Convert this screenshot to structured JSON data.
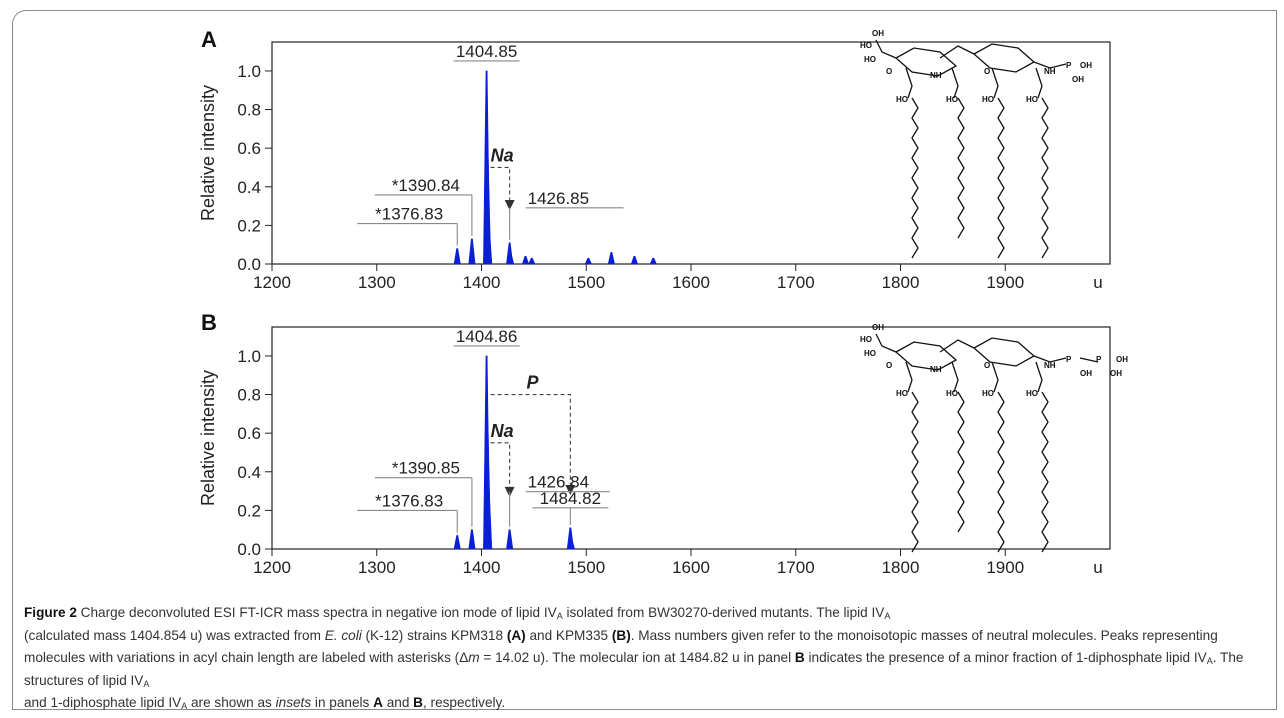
{
  "chart_data": [
    {
      "panel": "A",
      "type": "bar",
      "ylabel": "Relative intensity",
      "x_unit": "u",
      "xlim": [
        1200,
        2000
      ],
      "ylim": [
        0,
        1.15
      ],
      "x_ticks": [
        "1200",
        "1300",
        "1400",
        "1500",
        "1600",
        "1700",
        "1800",
        "1900"
      ],
      "y_ticks": [
        "0.0",
        "0.2",
        "0.4",
        "0.6",
        "0.8",
        "1.0"
      ],
      "peaks": [
        {
          "x": 1376.83,
          "y": 0.08
        },
        {
          "x": 1390.84,
          "y": 0.13
        },
        {
          "x": 1404.85,
          "y": 1.0
        },
        {
          "x": 1405.85,
          "y": 0.55
        },
        {
          "x": 1406.85,
          "y": 0.2
        },
        {
          "x": 1426.85,
          "y": 0.11
        },
        {
          "x": 1427.85,
          "y": 0.05
        },
        {
          "x": 1442,
          "y": 0.04
        },
        {
          "x": 1448,
          "y": 0.03
        },
        {
          "x": 1502,
          "y": 0.03
        },
        {
          "x": 1524,
          "y": 0.06
        },
        {
          "x": 1546,
          "y": 0.04
        },
        {
          "x": 1564,
          "y": 0.03
        }
      ],
      "labels": [
        {
          "text": "1404.85",
          "peak_x": 1404.85,
          "peak_y": 1.0
        },
        {
          "text": "*1390.84",
          "peak_x": 1390.84,
          "peak_y": 0.13
        },
        {
          "text": "*1376.83",
          "peak_x": 1376.83,
          "peak_y": 0.08
        },
        {
          "text": "1426.85",
          "peak_x": 1426.85,
          "peak_y": 0.11
        }
      ],
      "annotations": [
        {
          "text": "Na",
          "from_x": 1404.85,
          "to_x": 1426.85,
          "level": 0.5
        }
      ]
    },
    {
      "panel": "B",
      "type": "bar",
      "ylabel": "Relative intensity",
      "x_unit": "u",
      "xlim": [
        1200,
        2000
      ],
      "ylim": [
        0,
        1.15
      ],
      "x_ticks": [
        "1200",
        "1300",
        "1400",
        "1500",
        "1600",
        "1700",
        "1800",
        "1900"
      ],
      "y_ticks": [
        "0.0",
        "0.2",
        "0.4",
        "0.6",
        "0.8",
        "1.0"
      ],
      "peaks": [
        {
          "x": 1376.83,
          "y": 0.07
        },
        {
          "x": 1390.85,
          "y": 0.1
        },
        {
          "x": 1404.86,
          "y": 1.0
        },
        {
          "x": 1405.86,
          "y": 0.6
        },
        {
          "x": 1406.86,
          "y": 0.3
        },
        {
          "x": 1426.84,
          "y": 0.1
        },
        {
          "x": 1484.82,
          "y": 0.11
        },
        {
          "x": 1485.82,
          "y": 0.05
        }
      ],
      "labels": [
        {
          "text": "1404.86",
          "peak_x": 1404.86,
          "peak_y": 1.0
        },
        {
          "text": "*1390.85",
          "peak_x": 1390.85,
          "peak_y": 0.1
        },
        {
          "text": "*1376.83",
          "peak_x": 1376.83,
          "peak_y": 0.07
        },
        {
          "text": "1426.84",
          "peak_x": 1426.84,
          "peak_y": 0.1
        },
        {
          "text": "1484.82",
          "peak_x": 1484.82,
          "peak_y": 0.11
        }
      ],
      "annotations": [
        {
          "text": "Na",
          "from_x": 1404.86,
          "to_x": 1426.84,
          "level": 0.55
        },
        {
          "text": "P",
          "from_x": 1404.86,
          "to_x": 1484.82,
          "level": 0.8
        }
      ]
    }
  ],
  "structure_a": {
    "labels": [
      "HO",
      "HO",
      "O",
      "NH",
      "HO",
      "HO",
      "HO",
      "HO",
      "NH",
      "O",
      "P",
      "OH",
      "OH",
      "OH"
    ]
  },
  "structure_b": {
    "labels": [
      "HO",
      "HO",
      "O",
      "NH",
      "HO",
      "HO",
      "HO",
      "HO",
      "NH",
      "O",
      "P",
      "P",
      "OH",
      "OH",
      "OH",
      "OH"
    ]
  },
  "caption": {
    "figure_label": "Figure 2",
    "lines": [
      "Charge deconvoluted ESI FT-ICR mass spectra in negative ion mode of lipid IV",
      "A",
      " isolated from BW30270-derived mutants. The lipid IV",
      "A",
      "(calculated mass 1404.854 u) was extracted from ",
      "E. coli",
      " (K-12) strains KPM318 ",
      "(A)",
      " and KPM335 ",
      "(B)",
      ". Mass numbers given refer to the monoisotopic masses of neutral molecules. Peaks representing molecules with variations in acyl chain length are labeled with asterisks (Δ",
      "m",
      " = 14.02 u). The molecular ion at 1484.82 u in panel ",
      "B",
      " indicates the presence of a minor fraction of 1-diphosphate lipid IV",
      "A",
      ". The structures of lipid IV",
      "A",
      " and 1-diphosphate lipid IV",
      "A",
      " are shown as ",
      "insets",
      " in panels ",
      "A",
      " and ",
      "B",
      ", respectively."
    ]
  }
}
